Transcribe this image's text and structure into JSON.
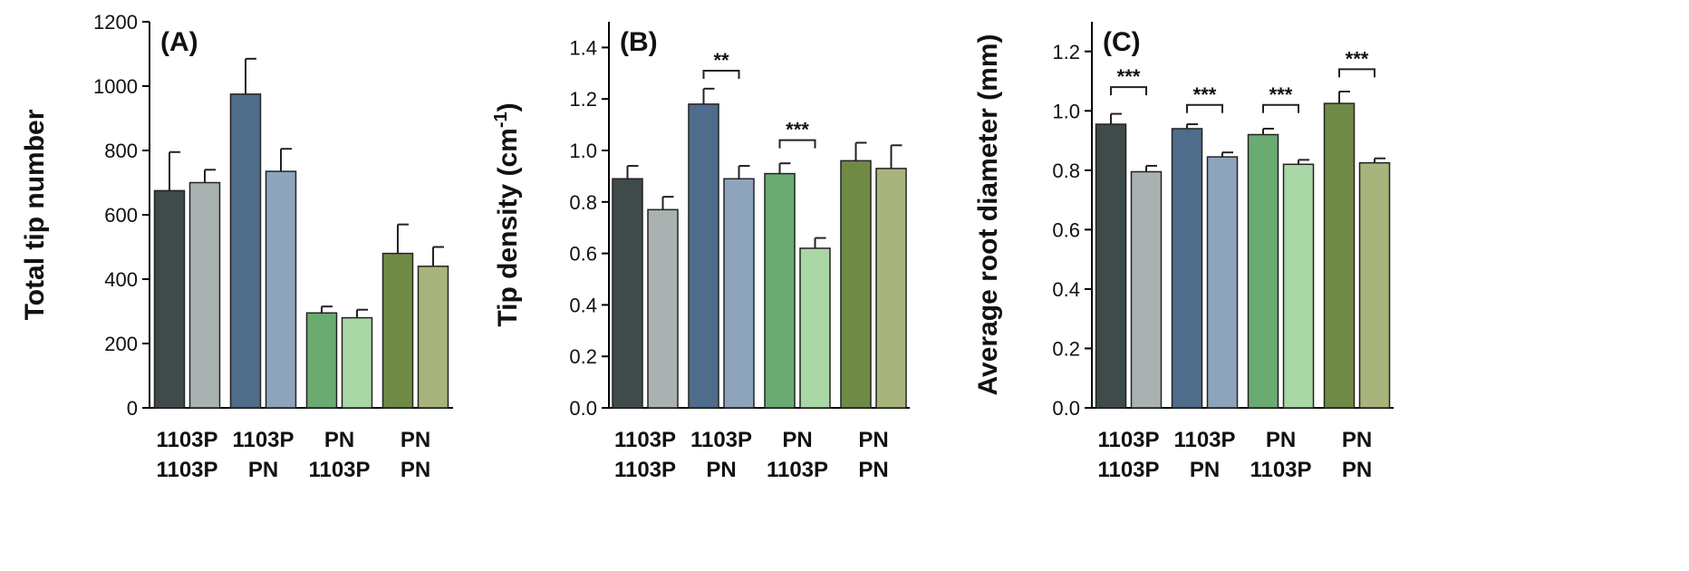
{
  "chart_data": [
    {
      "type": "bar",
      "panel_label": "(A)",
      "ylabel": "Total tip number",
      "ylim": [
        0,
        1200
      ],
      "yticks": [
        "0",
        "200",
        "400",
        "600",
        "800",
        "1000",
        "1200"
      ],
      "category_labels": [
        {
          "line1": "1103P",
          "line2": "1103P"
        },
        {
          "line1": "1103P",
          "line2": "PN"
        },
        {
          "line1": "PN",
          "line2": "1103P"
        },
        {
          "line1": "PN",
          "line2": "PN"
        }
      ],
      "values": [
        675,
        700,
        975,
        735,
        295,
        280,
        480,
        440
      ],
      "errors": [
        120,
        40,
        110,
        70,
        20,
        25,
        90,
        60
      ],
      "significance": []
    },
    {
      "type": "bar",
      "panel_label": "(B)",
      "ylabel": "Tip density (cm",
      "ylabel_sup": "-1",
      "ylabel_end": ")",
      "ylim": [
        0,
        1.5
      ],
      "yticks": [
        "0.0",
        "0.2",
        "0.4",
        "0.6",
        "0.8",
        "1.0",
        "1.2",
        "1.4"
      ],
      "category_labels": [
        {
          "line1": "1103P",
          "line2": "1103P"
        },
        {
          "line1": "1103P",
          "line2": "PN"
        },
        {
          "line1": "PN",
          "line2": "1103P"
        },
        {
          "line1": "PN",
          "line2": "PN"
        }
      ],
      "values": [
        0.89,
        0.77,
        1.18,
        0.89,
        0.91,
        0.62,
        0.96,
        0.93
      ],
      "errors": [
        0.05,
        0.05,
        0.06,
        0.05,
        0.04,
        0.04,
        0.07,
        0.09
      ],
      "significance": [
        {
          "pair": [
            2,
            3
          ],
          "label": "**",
          "level": 1.31
        },
        {
          "pair": [
            4,
            5
          ],
          "label": "***",
          "level": 1.04
        }
      ]
    },
    {
      "type": "bar",
      "panel_label": "(C)",
      "ylabel": "Average root diameter (mm)",
      "ylim": [
        0,
        1.3
      ],
      "yticks": [
        "0.0",
        "0.2",
        "0.4",
        "0.6",
        "0.8",
        "1.0",
        "1.2"
      ],
      "category_labels": [
        {
          "line1": "1103P",
          "line2": "1103P"
        },
        {
          "line1": "1103P",
          "line2": "PN"
        },
        {
          "line1": "PN",
          "line2": "1103P"
        },
        {
          "line1": "PN",
          "line2": "PN"
        }
      ],
      "values": [
        0.955,
        0.795,
        0.94,
        0.845,
        0.92,
        0.82,
        1.025,
        0.825
      ],
      "errors": [
        0.035,
        0.02,
        0.015,
        0.015,
        0.02,
        0.015,
        0.04,
        0.015
      ],
      "significance": [
        {
          "pair": [
            0,
            1
          ],
          "label": "***",
          "level": 1.08
        },
        {
          "pair": [
            2,
            3
          ],
          "label": "***",
          "level": 1.02
        },
        {
          "pair": [
            4,
            5
          ],
          "label": "***",
          "level": 1.02
        },
        {
          "pair": [
            6,
            7
          ],
          "label": "***",
          "level": 1.14
        }
      ]
    }
  ],
  "bar_colors": [
    "#3f4a4a",
    "#a9b1b1",
    "#4f6c8a",
    "#8ea4bd",
    "#6aab72",
    "#a9d7a5",
    "#6f8a45",
    "#a7b57c"
  ]
}
